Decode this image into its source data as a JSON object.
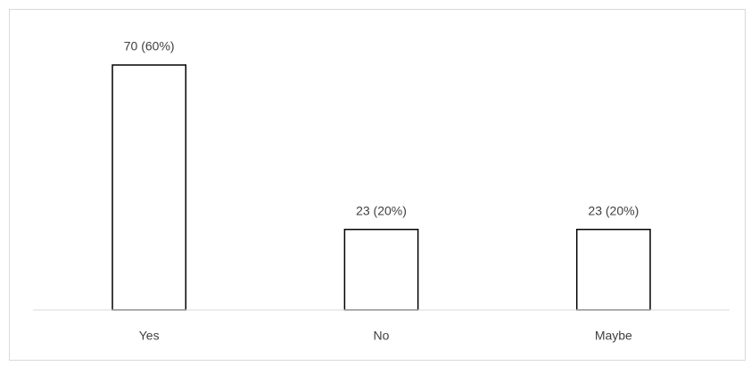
{
  "chart_data": {
    "type": "bar",
    "categories": [
      "Yes",
      "No",
      "Maybe"
    ],
    "values": [
      70,
      23,
      23
    ],
    "value_labels": [
      "70 (60%)",
      "23 (20%)",
      "23 (20%)"
    ],
    "color": "#ffffff"
  }
}
